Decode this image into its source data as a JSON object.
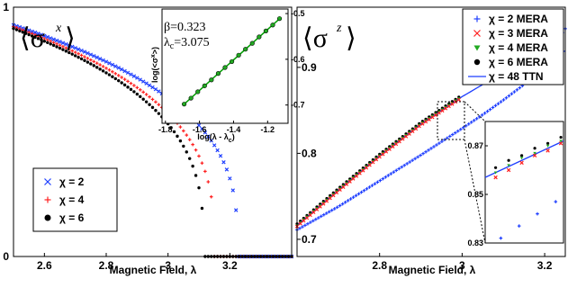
{
  "chart_data": [
    {
      "type": "scatter",
      "title": "⟨σ^x⟩",
      "xlabel": "Magnetic Field, λ",
      "ylabel": "",
      "xlim": [
        2.5,
        3.4
      ],
      "ylim": [
        0,
        1
      ],
      "xticks": [
        "2.6",
        "2.8",
        "3",
        "3.2"
      ],
      "yticks": [
        "0",
        "1"
      ],
      "legend_position": "bottom-left",
      "series": [
        {
          "name": "χ = 2",
          "marker": "x",
          "color": "#1f3fff",
          "lambda_c": 3.225,
          "amplitude": 1.03,
          "beta": 0.323,
          "x_from": 2.5,
          "x_to": 3.4,
          "step": 0.01
        },
        {
          "name": "χ = 4",
          "marker": "+",
          "color": "#ff2020",
          "lambda_c": 3.15,
          "amplitude": 1.06,
          "beta": 0.323,
          "x_from": 2.5,
          "x_to": 3.4,
          "step": 0.01
        },
        {
          "name": "χ = 6",
          "marker": "dot",
          "color": "#000000",
          "lambda_c": 3.115,
          "amplitude": 1.07,
          "beta": 0.323,
          "x_from": 2.5,
          "x_to": 3.4,
          "step": 0.01
        }
      ],
      "inset": {
        "type": "line",
        "xlabel": "log(λ - λc)",
        "ylabel": "log(<σx>)",
        "xlim": [
          -1.82,
          -1.08
        ],
        "ylim": [
          -0.74,
          -0.49
        ],
        "xticks": [
          "-1.8",
          "-1.6",
          "-1.4",
          "-1.2"
        ],
        "yticks": [
          "-0.5",
          "-0.6",
          "-0.7"
        ],
        "beta_label": "β=0.323",
        "lambda_c_label": "λc=3.075",
        "line": {
          "x": [
            -1.69,
            -1.12
          ],
          "y": [
            -0.698,
            -0.508
          ],
          "color": "#00a000"
        },
        "points": {
          "x": [
            -1.69,
            -1.65,
            -1.61,
            -1.57,
            -1.53,
            -1.49,
            -1.45,
            -1.41,
            -1.37,
            -1.33,
            -1.29,
            -1.25,
            -1.21,
            -1.17,
            -1.13
          ],
          "y": [
            -0.698,
            -0.685,
            -0.671,
            -0.658,
            -0.645,
            -0.631,
            -0.618,
            -0.605,
            -0.591,
            -0.578,
            -0.565,
            -0.551,
            -0.538,
            -0.525,
            -0.511
          ],
          "color": "#22aa22"
        }
      }
    },
    {
      "type": "scatter",
      "title": "⟨σ^z⟩",
      "xlabel": "Magnetic Field, λ",
      "ylabel": "",
      "xlim": [
        2.6,
        3.25
      ],
      "ylim": [
        0.68,
        0.97
      ],
      "xticks": [
        "2.8",
        "3",
        "3.2"
      ],
      "yticks": [
        "0.7",
        "0.8",
        "0.9"
      ],
      "legend_position": "top-right",
      "series": [
        {
          "name": "χ = 2 MERA",
          "marker": "+",
          "color": "#1f3fff"
        },
        {
          "name": "χ = 3 MERA",
          "marker": "x",
          "color": "#ff2020"
        },
        {
          "name": "χ = 4 MERA",
          "marker": "triangle",
          "color": "#22aa22"
        },
        {
          "name": "χ = 6 MERA",
          "marker": "dot",
          "color": "#000000"
        },
        {
          "name": "χ = 48 TTN",
          "marker": "line",
          "color": "#1f3fff"
        }
      ],
      "curves": {
        "ttn": {
          "x": [
            2.6,
            2.7,
            2.8,
            2.9,
            3.0,
            3.1,
            3.2,
            3.25
          ],
          "y": [
            0.716,
            0.757,
            0.797,
            0.834,
            0.866,
            0.894,
            0.913,
            0.919
          ]
        },
        "mera2": {
          "x": [
            2.6,
            2.7,
            2.8,
            2.9,
            3.0,
            3.05,
            3.1,
            3.15,
            3.2,
            3.25
          ],
          "y": [
            0.711,
            0.738,
            0.768,
            0.798,
            0.829,
            0.845,
            0.862,
            0.88,
            0.909,
            0.945
          ]
        }
      },
      "inset": {
        "xlim": [
          2.925,
          2.955
        ],
        "ylim": [
          0.83,
          0.88
        ],
        "yticks": [
          "0.83",
          "0.85",
          "0.87"
        ],
        "line": {
          "x": [
            2.925,
            2.955
          ],
          "y": [
            0.857,
            0.872
          ]
        },
        "mera6": {
          "x": [
            2.929,
            2.934,
            2.939,
            2.944,
            2.949,
            2.954
          ],
          "y": [
            0.861,
            0.864,
            0.866,
            0.869,
            0.871,
            0.8735
          ]
        },
        "mera4": {
          "x": [
            2.929,
            2.934,
            2.939,
            2.944,
            2.949,
            2.954
          ],
          "y": [
            0.859,
            0.862,
            0.865,
            0.867,
            0.87,
            0.872
          ]
        },
        "mera3": {
          "x": [
            2.929,
            2.934,
            2.939,
            2.944,
            2.949,
            2.954
          ],
          "y": [
            0.857,
            0.86,
            0.863,
            0.866,
            0.868,
            0.871
          ]
        },
        "mera2": {
          "x": [
            2.931,
            2.938,
            2.945,
            2.952
          ],
          "y": [
            0.832,
            0.837,
            0.842,
            0.847
          ]
        }
      }
    }
  ]
}
